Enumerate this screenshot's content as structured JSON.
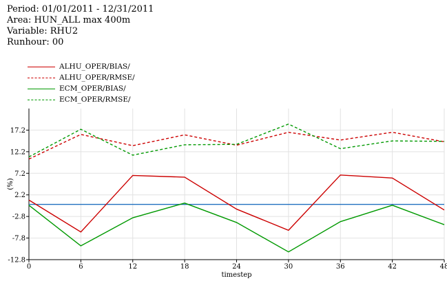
{
  "header": {
    "period": "Period: 01/01/2011 - 12/31/2011",
    "area": "Area: HUN_ALL max 400m",
    "variable": "Variable: RHU2",
    "runhour": "Runhour: 00"
  },
  "chart_data": {
    "type": "line",
    "xlabel": "timestep",
    "ylabel": "(%)",
    "x": [
      0,
      6,
      12,
      18,
      24,
      30,
      36,
      42,
      48
    ],
    "xticks": [
      "0",
      "6",
      "12",
      "18",
      "24",
      "30",
      "36",
      "42",
      "48"
    ],
    "yticks": [
      "-12.8",
      "-7.8",
      "-2.8",
      "2.2",
      "7.2",
      "12.2",
      "17.2"
    ],
    "ylim": [
      -12.8,
      22.2
    ],
    "xlim": [
      0,
      48
    ],
    "grid": true,
    "legend_position": "top-left",
    "reference_line": {
      "y": 0,
      "color": "#1f6fbf"
    },
    "series": [
      {
        "name": "ALHU_OPER/BIAS/",
        "color": "#cc0000",
        "dash": "solid",
        "values": [
          1.0,
          -6.4,
          6.7,
          6.3,
          -1.1,
          -6.0,
          6.8,
          6.1,
          -1.3
        ]
      },
      {
        "name": "ALHU_OPER/RMSE/",
        "color": "#cc0000",
        "dash": "dashed",
        "values": [
          10.5,
          16.2,
          13.6,
          16.1,
          13.7,
          16.7,
          14.9,
          16.7,
          14.5
        ]
      },
      {
        "name": "ECM_OPER/BIAS/",
        "color": "#009900",
        "dash": "solid",
        "values": [
          -0.2,
          -9.6,
          -3.1,
          0.3,
          -4.2,
          -11.0,
          -4.0,
          -0.2,
          -4.7
        ]
      },
      {
        "name": "ECM_OPER/RMSE/",
        "color": "#009900",
        "dash": "dashed",
        "values": [
          11.0,
          17.4,
          11.4,
          13.8,
          13.9,
          18.6,
          12.9,
          14.7,
          14.6
        ]
      }
    ]
  }
}
